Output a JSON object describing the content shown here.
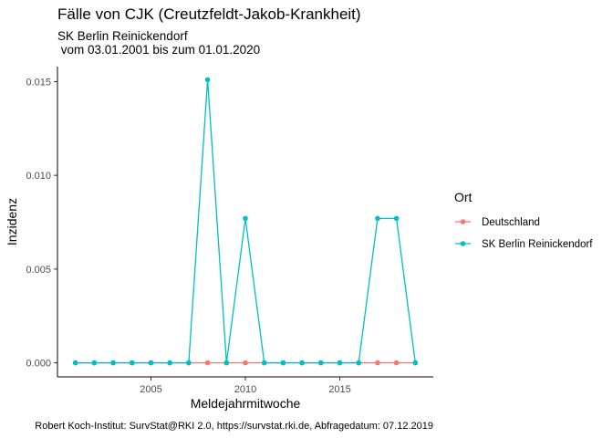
{
  "chart_data": {
    "type": "line",
    "title": "Fälle von CJK (Creutzfeldt-Jakob-Krankheit)",
    "subtitle_line1": "SK Berlin Reinickendorf",
    "subtitle_line2": " vom 03.01.2001 bis zum 01.01.2020",
    "xlabel": "Meldejahrmitwoche",
    "ylabel": "Inzidenz",
    "caption": "Robert Koch-Institut: SurvStat@RKI 2.0, https://survstat.rki.de, Abfragedatum: 07.12.2019",
    "xlim": [
      2000.05,
      2019.95
    ],
    "ylim": [
      -0.00075,
      0.0158
    ],
    "xticks": [
      2005,
      2010,
      2015
    ],
    "xtick_labels": [
      "2005",
      "2010",
      "2015"
    ],
    "yticks": [
      0,
      0.005,
      0.01,
      0.015
    ],
    "ytick_labels": [
      "0.000",
      "0.005",
      "0.010",
      "0.015"
    ],
    "grid": false,
    "legend_title": "Ort",
    "legend_position": "right",
    "x": [
      2001,
      2002,
      2003,
      2004,
      2005,
      2006,
      2007,
      2008,
      2009,
      2010,
      2011,
      2012,
      2013,
      2014,
      2015,
      2016,
      2017,
      2018,
      2019
    ],
    "series": [
      {
        "name": "Deutschland",
        "color": "#F8766D",
        "values": [
          0,
          0,
          0,
          0,
          0,
          0,
          0,
          0,
          0,
          0,
          0,
          0,
          0,
          0,
          0,
          0,
          0,
          0,
          0
        ]
      },
      {
        "name": "SK Berlin Reinickendorf",
        "color": "#00BFC4",
        "values": [
          0,
          0,
          0,
          0,
          0,
          0,
          0,
          0.0151,
          0,
          0.0077,
          0,
          0,
          0,
          0,
          0,
          0,
          0.0077,
          0.0077,
          0
        ]
      }
    ]
  }
}
